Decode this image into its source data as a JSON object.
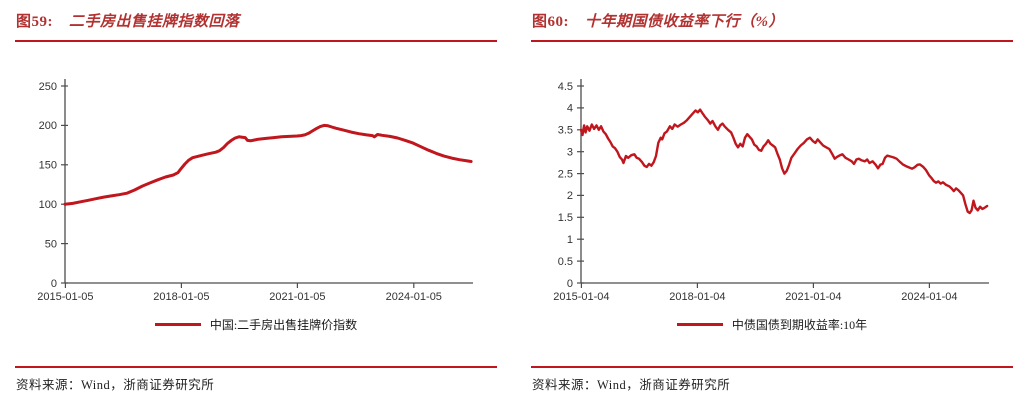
{
  "theme": {
    "accent": "#c0161d",
    "title_color": "#b23231",
    "axis_color": "#4d4d4d",
    "tick_text": "#333333",
    "background": "#ffffff"
  },
  "figures": [
    {
      "label": "图59:",
      "title": "二手房出售挂牌指数回落",
      "source": "资料来源：Wind，浙商证券研究所"
    },
    {
      "label": "图60:",
      "title": "十年期国债收益率下行（%）",
      "source": "资料来源：Wind，浙商证券研究所"
    }
  ],
  "chart_data": [
    {
      "type": "line",
      "title": "图59: 二手房出售挂牌指数回落",
      "xlabel": "",
      "ylabel": "",
      "grid": false,
      "legend_position": "bottom",
      "xlim": [
        2015.0,
        2025.55
      ],
      "ylim": [
        0,
        250
      ],
      "yticks": [
        0,
        50,
        100,
        150,
        200,
        250
      ],
      "xticks": [
        {
          "pos": 2015.01,
          "label": "2015-01-05"
        },
        {
          "pos": 2018.01,
          "label": "2018-01-05"
        },
        {
          "pos": 2021.01,
          "label": "2021-01-05"
        },
        {
          "pos": 2024.02,
          "label": "2024-01-05"
        }
      ],
      "axis_color": "#4d4d4d",
      "series": [
        {
          "name": "中国:二手房出售挂牌价指数",
          "color": "#c0161d",
          "width": 3,
          "x": [
            2015.0,
            2015.2,
            2015.4,
            2015.6,
            2015.8,
            2016.0,
            2016.2,
            2016.4,
            2016.6,
            2016.8,
            2017.0,
            2017.2,
            2017.4,
            2017.6,
            2017.8,
            2017.92,
            2018.0,
            2018.1,
            2018.2,
            2018.3,
            2018.5,
            2018.7,
            2018.9,
            2019.0,
            2019.1,
            2019.2,
            2019.3,
            2019.4,
            2019.5,
            2019.58,
            2019.66,
            2019.72,
            2019.8,
            2019.9,
            2020.0,
            2020.2,
            2020.4,
            2020.6,
            2020.8,
            2021.0,
            2021.1,
            2021.2,
            2021.3,
            2021.4,
            2021.5,
            2021.6,
            2021.7,
            2021.8,
            2021.9,
            2022.0,
            2022.2,
            2022.4,
            2022.6,
            2022.8,
            2022.95,
            2023.0,
            2023.08,
            2023.2,
            2023.4,
            2023.6,
            2023.8,
            2024.0,
            2024.2,
            2024.4,
            2024.6,
            2024.8,
            2025.0,
            2025.2,
            2025.4,
            2025.5
          ],
          "y": [
            100,
            101,
            103,
            105,
            107,
            109,
            110.5,
            112,
            114,
            118,
            123,
            127,
            131,
            134.5,
            137,
            140,
            145,
            151,
            156,
            159,
            161.5,
            164,
            166,
            168,
            172,
            177,
            181,
            184,
            185.5,
            185,
            184.5,
            181,
            180.5,
            181.5,
            182.5,
            183.5,
            184.5,
            185.5,
            186,
            186.5,
            187,
            188,
            190,
            193,
            196,
            198.5,
            200,
            199.5,
            198,
            196.5,
            194,
            191.5,
            189.5,
            188,
            187,
            185.5,
            188.5,
            187.5,
            186,
            184,
            181,
            177.5,
            173,
            168.5,
            164.5,
            161,
            158.5,
            156.5,
            155,
            154.2
          ]
        }
      ]
    },
    {
      "type": "line",
      "title": "图60: 十年期国债收益率下行（%）",
      "xlabel": "",
      "ylabel": "",
      "grid": false,
      "legend_position": "bottom",
      "xlim": [
        2015.0,
        2025.55
      ],
      "ylim": [
        0,
        4.5
      ],
      "yticks": [
        0,
        0.5,
        1,
        1.5,
        2,
        2.5,
        3,
        3.5,
        4,
        4.5
      ],
      "xticks": [
        {
          "pos": 2015.01,
          "label": "2015-01-04"
        },
        {
          "pos": 2018.01,
          "label": "2018-01-04"
        },
        {
          "pos": 2021.01,
          "label": "2021-01-04"
        },
        {
          "pos": 2024.01,
          "label": "2024-01-04"
        }
      ],
      "axis_color": "#4d4d4d",
      "series": [
        {
          "name": "中债国债到期收益率:10年",
          "color": "#c0161d",
          "width": 2.4,
          "x": [
            2015.0,
            2015.04,
            2015.08,
            2015.12,
            2015.16,
            2015.22,
            2015.28,
            2015.34,
            2015.4,
            2015.46,
            2015.52,
            2015.58,
            2015.64,
            2015.7,
            2015.76,
            2015.82,
            2015.88,
            2015.94,
            2016.0,
            2016.06,
            2016.1,
            2016.16,
            2016.22,
            2016.3,
            2016.38,
            2016.44,
            2016.5,
            2016.58,
            2016.64,
            2016.7,
            2016.76,
            2016.82,
            2016.88,
            2016.94,
            2017.0,
            2017.06,
            2017.1,
            2017.16,
            2017.22,
            2017.3,
            2017.36,
            2017.42,
            2017.5,
            2017.58,
            2017.66,
            2017.74,
            2017.82,
            2017.9,
            2017.96,
            2018.02,
            2018.08,
            2018.14,
            2018.2,
            2018.28,
            2018.34,
            2018.4,
            2018.48,
            2018.54,
            2018.6,
            2018.66,
            2018.72,
            2018.8,
            2018.88,
            2018.94,
            2019.0,
            2019.06,
            2019.12,
            2019.18,
            2019.24,
            2019.3,
            2019.36,
            2019.42,
            2019.48,
            2019.54,
            2019.6,
            2019.66,
            2019.72,
            2019.78,
            2019.84,
            2019.9,
            2019.96,
            2020.02,
            2020.08,
            2020.14,
            2020.2,
            2020.26,
            2020.32,
            2020.38,
            2020.44,
            2020.52,
            2020.6,
            2020.68,
            2020.76,
            2020.84,
            2020.92,
            2021.0,
            2021.06,
            2021.12,
            2021.2,
            2021.26,
            2021.34,
            2021.42,
            2021.5,
            2021.56,
            2021.62,
            2021.7,
            2021.76,
            2021.84,
            2021.92,
            2022.0,
            2022.06,
            2022.12,
            2022.18,
            2022.26,
            2022.34,
            2022.4,
            2022.46,
            2022.54,
            2022.62,
            2022.68,
            2022.74,
            2022.8,
            2022.86,
            2022.92,
            2023.0,
            2023.08,
            2023.16,
            2023.24,
            2023.32,
            2023.4,
            2023.48,
            2023.56,
            2023.62,
            2023.7,
            2023.76,
            2023.84,
            2023.92,
            2024.0,
            2024.06,
            2024.12,
            2024.18,
            2024.24,
            2024.3,
            2024.36,
            2024.44,
            2024.52,
            2024.58,
            2024.64,
            2024.7,
            2024.76,
            2024.82,
            2024.88,
            2024.94,
            2025.0,
            2025.05,
            2025.1,
            2025.15,
            2025.2,
            2025.26,
            2025.32,
            2025.38,
            2025.44,
            2025.5
          ],
          "y": [
            3.5,
            3.38,
            3.6,
            3.44,
            3.58,
            3.48,
            3.62,
            3.52,
            3.6,
            3.5,
            3.58,
            3.46,
            3.4,
            3.3,
            3.22,
            3.12,
            3.08,
            3.0,
            2.88,
            2.82,
            2.74,
            2.9,
            2.86,
            2.92,
            2.94,
            2.86,
            2.84,
            2.76,
            2.68,
            2.65,
            2.72,
            2.68,
            2.76,
            2.9,
            3.2,
            3.32,
            3.28,
            3.42,
            3.46,
            3.58,
            3.52,
            3.62,
            3.57,
            3.62,
            3.66,
            3.72,
            3.8,
            3.88,
            3.94,
            3.9,
            3.96,
            3.88,
            3.8,
            3.72,
            3.64,
            3.7,
            3.57,
            3.5,
            3.6,
            3.64,
            3.57,
            3.5,
            3.44,
            3.32,
            3.18,
            3.1,
            3.18,
            3.12,
            3.32,
            3.4,
            3.34,
            3.28,
            3.16,
            3.12,
            3.04,
            3.02,
            3.12,
            3.18,
            3.26,
            3.18,
            3.14,
            3.1,
            2.95,
            2.82,
            2.62,
            2.5,
            2.56,
            2.7,
            2.86,
            2.96,
            3.06,
            3.14,
            3.2,
            3.28,
            3.32,
            3.24,
            3.2,
            3.28,
            3.2,
            3.14,
            3.1,
            3.06,
            2.94,
            2.84,
            2.88,
            2.92,
            2.94,
            2.86,
            2.82,
            2.78,
            2.72,
            2.82,
            2.84,
            2.8,
            2.78,
            2.82,
            2.74,
            2.78,
            2.7,
            2.62,
            2.7,
            2.72,
            2.86,
            2.91,
            2.89,
            2.87,
            2.84,
            2.77,
            2.71,
            2.67,
            2.64,
            2.61,
            2.64,
            2.7,
            2.71,
            2.66,
            2.58,
            2.46,
            2.4,
            2.33,
            2.29,
            2.32,
            2.27,
            2.3,
            2.24,
            2.21,
            2.16,
            2.1,
            2.16,
            2.12,
            2.06,
            2.0,
            1.8,
            1.63,
            1.6,
            1.66,
            1.88,
            1.72,
            1.66,
            1.74,
            1.69,
            1.72,
            1.76
          ]
        }
      ]
    }
  ]
}
